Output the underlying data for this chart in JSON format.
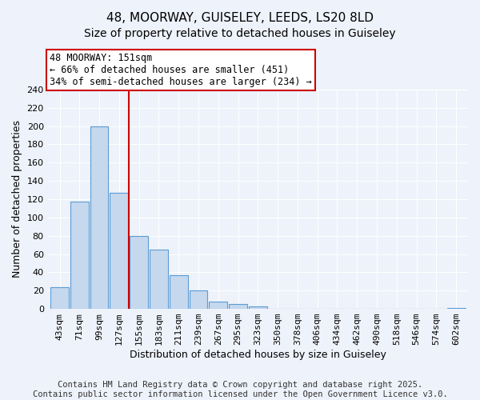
{
  "title": "48, MOORWAY, GUISELEY, LEEDS, LS20 8LD",
  "subtitle": "Size of property relative to detached houses in Guiseley",
  "xlabel": "Distribution of detached houses by size in Guiseley",
  "ylabel": "Number of detached properties",
  "categories": [
    "43sqm",
    "71sqm",
    "99sqm",
    "127sqm",
    "155sqm",
    "183sqm",
    "211sqm",
    "239sqm",
    "267sqm",
    "295sqm",
    "323sqm",
    "350sqm",
    "378sqm",
    "406sqm",
    "434sqm",
    "462sqm",
    "490sqm",
    "518sqm",
    "546sqm",
    "574sqm",
    "602sqm"
  ],
  "values": [
    24,
    117,
    200,
    127,
    80,
    65,
    37,
    20,
    8,
    5,
    3,
    0,
    0,
    0,
    0,
    0,
    0,
    0,
    0,
    0,
    1
  ],
  "bar_color": "#c5d8ee",
  "bar_edge_color": "#5b9bd5",
  "vline_index": 3.5,
  "vline_color": "#cc0000",
  "annotation_text": "48 MOORWAY: 151sqm\n← 66% of detached houses are smaller (451)\n34% of semi-detached houses are larger (234) →",
  "annotation_box_color": "#ffffff",
  "annotation_box_edge_color": "#cc0000",
  "ylim": [
    0,
    240
  ],
  "yticks": [
    0,
    20,
    40,
    60,
    80,
    100,
    120,
    140,
    160,
    180,
    200,
    220,
    240
  ],
  "footer_line1": "Contains HM Land Registry data © Crown copyright and database right 2025.",
  "footer_line2": "Contains public sector information licensed under the Open Government Licence v3.0.",
  "background_color": "#eef2fa",
  "grid_color": "#ffffff",
  "title_fontsize": 11,
  "subtitle_fontsize": 10,
  "axis_label_fontsize": 9,
  "tick_fontsize": 8,
  "footer_fontsize": 7.5
}
